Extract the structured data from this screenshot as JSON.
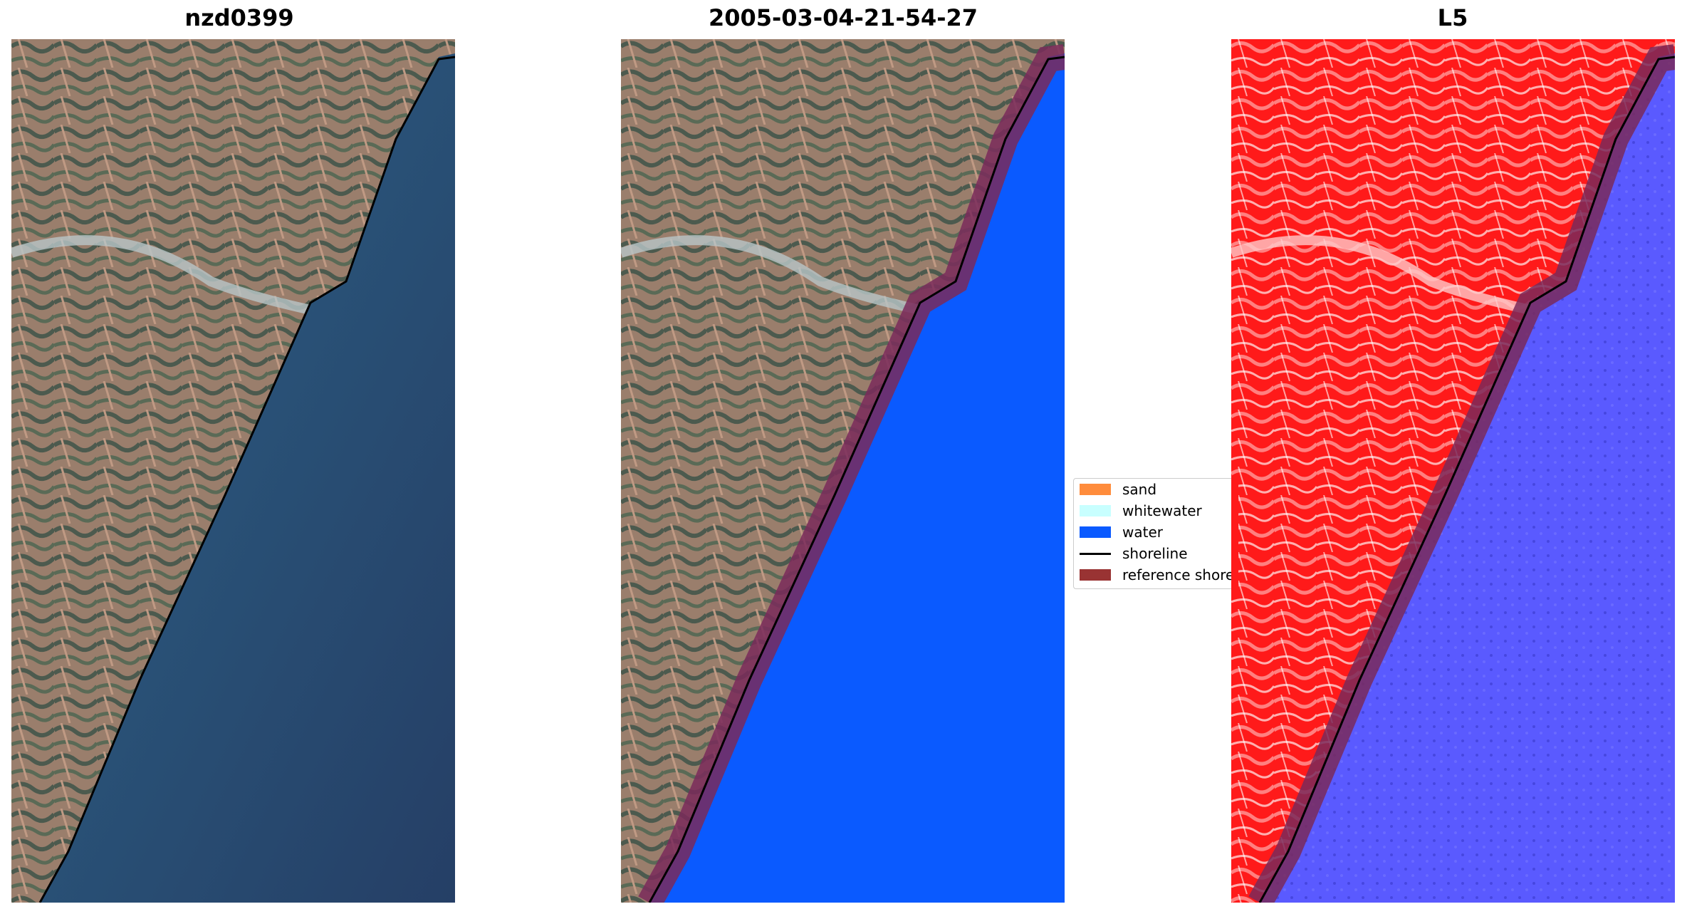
{
  "panels": {
    "rgb": {
      "title": "nzd0399"
    },
    "classified": {
      "title": "2005-03-04-21-54-27"
    },
    "index": {
      "title": "L5"
    }
  },
  "legend": {
    "items": [
      {
        "label": "sand",
        "color": "#ff8c3c"
      },
      {
        "label": "whitewater",
        "color": "#c8ffff"
      },
      {
        "label": "water",
        "color": "#0a5aff"
      },
      {
        "label": "shoreline",
        "color": "#000000"
      },
      {
        "label": "reference shoreline",
        "color": "#993333"
      }
    ]
  },
  "colors": {
    "land": "#8a7565",
    "ocean_rgb": "#2b4e72",
    "water_class": "#0a5aff",
    "index_land": "#ff1a1a",
    "index_water": "#5a5aff",
    "reference_buffer": "#7a2a5a"
  }
}
